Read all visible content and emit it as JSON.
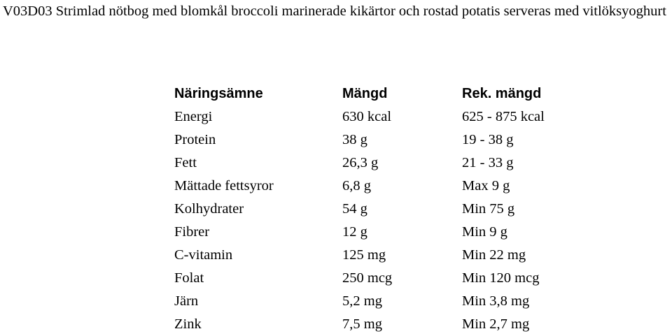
{
  "document": {
    "title": "V03D03 Strimlad nötbog med blomkål broccoli marinerade kikärtor och rostad potatis serveras med vitlöksyoghurt"
  },
  "table": {
    "headers": [
      "Näringsämne",
      "Mängd",
      "Rek. mängd"
    ],
    "rows": [
      [
        "Energi",
        "630 kcal",
        "625 - 875 kcal"
      ],
      [
        "Protein",
        "38 g",
        "19 - 38 g"
      ],
      [
        "Fett",
        "26,3 g",
        "21 - 33 g"
      ],
      [
        "Mättade fettsyror",
        "6,8 g",
        "Max 9 g"
      ],
      [
        "Kolhydrater",
        "54 g",
        "Min 75 g"
      ],
      [
        "Fibrer",
        "12 g",
        "Min 9 g"
      ],
      [
        "C-vitamin",
        "125 mg",
        "Min 22 mg"
      ],
      [
        "Folat",
        "250 mcg",
        "Min 120 mcg"
      ],
      [
        "Järn",
        "5,2 mg",
        "Min 3,8 mg"
      ],
      [
        "Zink",
        "7,5 mg",
        "Min 2,7 mg"
      ]
    ]
  }
}
